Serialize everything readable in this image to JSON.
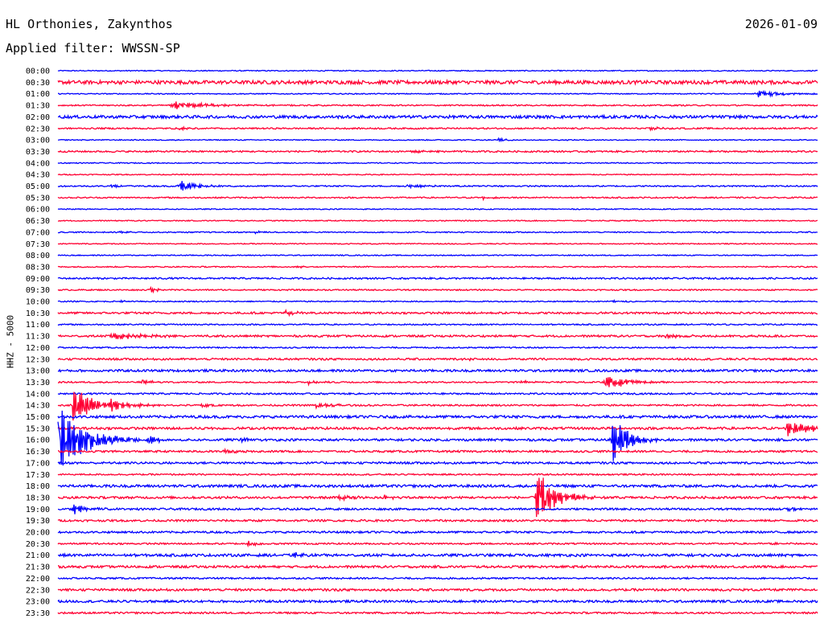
{
  "header": {
    "station": "HL Orthonies, Zakynthos",
    "date": "2026-01-09",
    "filter": "Applied filter: WWSSN-SP"
  },
  "chart_data": {
    "type": "line",
    "ylabel": "HHZ - 5000",
    "colors": [
      "#0000ff",
      "#ff0033"
    ],
    "rows": [
      "00:00",
      "00:30",
      "01:00",
      "01:30",
      "02:00",
      "02:30",
      "03:00",
      "03:30",
      "04:00",
      "04:30",
      "05:00",
      "05:30",
      "06:00",
      "06:30",
      "07:00",
      "07:30",
      "08:00",
      "08:30",
      "09:00",
      "09:30",
      "10:00",
      "10:30",
      "11:00",
      "11:30",
      "12:00",
      "12:30",
      "13:00",
      "13:30",
      "14:00",
      "14:30",
      "15:00",
      "15:30",
      "16:00",
      "16:30",
      "17:00",
      "17:30",
      "18:00",
      "18:30",
      "19:00",
      "19:30",
      "20:00",
      "20:30",
      "21:00",
      "21:30",
      "22:00",
      "22:30",
      "23:00",
      "23:30"
    ],
    "noise": [
      0.6,
      2.2,
      0.6,
      0.8,
      1.8,
      0.9,
      0.6,
      1.0,
      0.6,
      0.6,
      0.8,
      0.8,
      0.6,
      0.6,
      0.7,
      0.6,
      0.6,
      0.7,
      1.0,
      0.8,
      0.7,
      1.2,
      0.8,
      1.2,
      0.8,
      1.2,
      1.4,
      0.9,
      1.0,
      1.0,
      1.6,
      1.5,
      1.4,
      1.2,
      1.3,
      0.9,
      1.6,
      1.4,
      1.2,
      1.2,
      1.2,
      1.0,
      1.6,
      1.4,
      1.0,
      1.4,
      1.4,
      1.1
    ],
    "events": [
      {
        "row": "01:00",
        "t": 0.92,
        "amp": 5,
        "dur": 0.03
      },
      {
        "row": "01:30",
        "t": 0.15,
        "amp": 6,
        "dur": 0.045
      },
      {
        "row": "02:30",
        "t": 0.16,
        "amp": 2,
        "dur": 0.02
      },
      {
        "row": "02:30",
        "t": 0.78,
        "amp": 2,
        "dur": 0.015
      },
      {
        "row": "03:00",
        "t": 0.58,
        "amp": 2,
        "dur": 0.01
      },
      {
        "row": "03:30",
        "t": 0.47,
        "amp": 2,
        "dur": 0.02
      },
      {
        "row": "05:00",
        "t": 0.16,
        "amp": 10,
        "dur": 0.02
      },
      {
        "row": "05:00",
        "t": 0.46,
        "amp": 2,
        "dur": 0.03
      },
      {
        "row": "05:00",
        "t": 0.07,
        "amp": 2,
        "dur": 0.01
      },
      {
        "row": "05:30",
        "t": 0.56,
        "amp": 2,
        "dur": 0.01
      },
      {
        "row": "07:00",
        "t": 0.08,
        "amp": 2,
        "dur": 0.01
      },
      {
        "row": "07:00",
        "t": 0.26,
        "amp": 2,
        "dur": 0.01
      },
      {
        "row": "08:30",
        "t": 0.31,
        "amp": 2,
        "dur": 0.01
      },
      {
        "row": "09:30",
        "t": 0.12,
        "amp": 4,
        "dur": 0.01
      },
      {
        "row": "10:00",
        "t": 0.08,
        "amp": 2,
        "dur": 0.01
      },
      {
        "row": "10:00",
        "t": 0.73,
        "amp": 2,
        "dur": 0.01
      },
      {
        "row": "10:30",
        "t": 0.3,
        "amp": 4,
        "dur": 0.015
      },
      {
        "row": "11:30",
        "t": 0.07,
        "amp": 5,
        "dur": 0.04
      },
      {
        "row": "11:30",
        "t": 0.8,
        "amp": 2,
        "dur": 0.04
      },
      {
        "row": "12:30",
        "t": 0.53,
        "amp": 2,
        "dur": 0.02
      },
      {
        "row": "13:30",
        "t": 0.11,
        "amp": 5,
        "dur": 0.01
      },
      {
        "row": "13:30",
        "t": 0.33,
        "amp": 3,
        "dur": 0.01
      },
      {
        "row": "13:30",
        "t": 0.61,
        "amp": 3,
        "dur": 0.01
      },
      {
        "row": "13:30",
        "t": 0.72,
        "amp": 11,
        "dur": 0.03
      },
      {
        "row": "14:30",
        "t": 0.02,
        "amp": 24,
        "dur": 0.03
      },
      {
        "row": "14:30",
        "t": 0.07,
        "amp": 7,
        "dur": 0.02
      },
      {
        "row": "14:30",
        "t": 0.19,
        "amp": 3,
        "dur": 0.01
      },
      {
        "row": "14:30",
        "t": 0.34,
        "amp": 4,
        "dur": 0.02
      },
      {
        "row": "15:30",
        "t": 0.96,
        "amp": 12,
        "dur": 0.03
      },
      {
        "row": "15:30",
        "t": 0.17,
        "amp": 2,
        "dur": 0.01
      },
      {
        "row": "16:00",
        "t": 0.0,
        "amp": 50,
        "dur": 0.035
      },
      {
        "row": "16:00",
        "t": 0.12,
        "amp": 6,
        "dur": 0.01
      },
      {
        "row": "16:00",
        "t": 0.24,
        "amp": 3,
        "dur": 0.01
      },
      {
        "row": "16:00",
        "t": 0.73,
        "amp": 36,
        "dur": 0.02
      },
      {
        "row": "16:30",
        "t": 0.22,
        "amp": 4,
        "dur": 0.01
      },
      {
        "row": "18:30",
        "t": 0.37,
        "amp": 4,
        "dur": 0.02
      },
      {
        "row": "18:30",
        "t": 0.43,
        "amp": 3,
        "dur": 0.01
      },
      {
        "row": "18:30",
        "t": 0.63,
        "amp": 36,
        "dur": 0.025
      },
      {
        "row": "19:00",
        "t": 0.02,
        "amp": 8,
        "dur": 0.02
      },
      {
        "row": "19:00",
        "t": 0.96,
        "amp": 3,
        "dur": 0.01
      },
      {
        "row": "20:30",
        "t": 0.25,
        "amp": 4,
        "dur": 0.01
      },
      {
        "row": "20:30",
        "t": 0.94,
        "amp": 3,
        "dur": 0.01
      },
      {
        "row": "21:00",
        "t": 0.31,
        "amp": 4,
        "dur": 0.01
      }
    ]
  }
}
